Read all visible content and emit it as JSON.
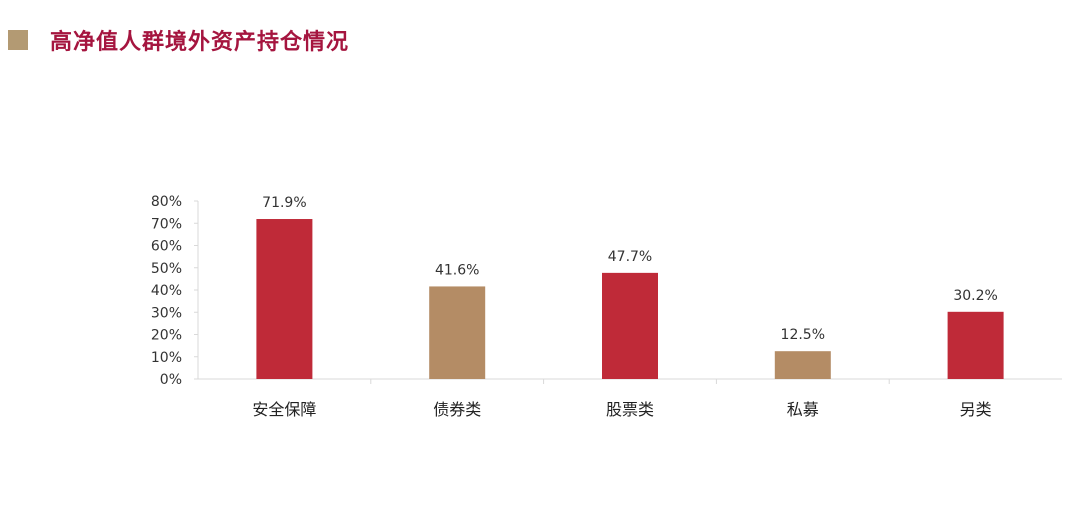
{
  "header": {
    "title": "高净值人群境外资产持仓情况",
    "square_color": "#b39a73"
  },
  "colors": {
    "red": "#bf2a38",
    "tan": "#b48c65",
    "axis": "#d9d9d9"
  },
  "chart_data": {
    "type": "bar",
    "title": "",
    "xlabel": "",
    "ylabel": "",
    "categories": [
      "安全保障",
      "债券类",
      "股票类",
      "私募",
      "另类"
    ],
    "values": [
      71.9,
      41.6,
      47.7,
      12.5,
      30.2
    ],
    "value_labels": [
      "71.9%",
      "41.6%",
      "47.7%",
      "12.5%",
      "30.2%"
    ],
    "bar_colors": [
      "#bf2a38",
      "#b48c65",
      "#bf2a38",
      "#b48c65",
      "#bf2a38"
    ],
    "ylim": [
      0,
      80
    ],
    "yticks": [
      0,
      10,
      20,
      30,
      40,
      50,
      60,
      70,
      80
    ],
    "ytick_labels": [
      "0%",
      "10%",
      "20%",
      "30%",
      "40%",
      "50%",
      "60%",
      "70%",
      "80%"
    ],
    "grid": false,
    "legend": "none"
  }
}
